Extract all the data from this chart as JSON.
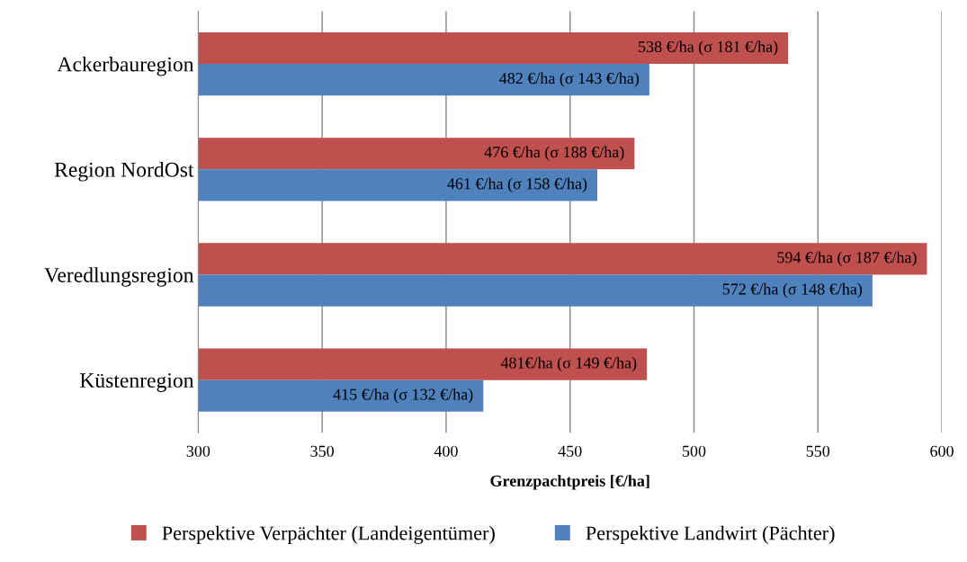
{
  "chart_data": {
    "type": "bar",
    "orientation": "horizontal",
    "xlabel": "Grenzpachtpreis [€/ha]",
    "categories": [
      "Ackerbauregion",
      "Region NordOst",
      "Veredlungsregion",
      "Küstenregion"
    ],
    "series": [
      {
        "name": "Perspektive Verpächter (Landeigentümer)",
        "color": "#c0504d",
        "values": [
          538,
          476,
          594,
          481
        ],
        "value_labels": [
          "538 €/ha (σ 181 €/ha)",
          "476 €/ha (σ 188 €/ha)",
          "594 €/ha (σ 187 €/ha)",
          "481€/ha (σ 149 €/ha)"
        ]
      },
      {
        "name": "Perspektive Landwirt (Pächter)",
        "color": "#4f81bd",
        "values": [
          482,
          461,
          572,
          415
        ],
        "value_labels": [
          "482 €/ha (σ 143 €/ha)",
          "461 €/ha (σ 158 €/ha)",
          "572 €/ha (σ 148 €/ha)",
          "415 €/ha (σ 132 €/ha)"
        ]
      }
    ],
    "xlim": [
      300,
      600
    ],
    "xticks": [
      300,
      350,
      400,
      450,
      500,
      550,
      600
    ],
    "grid": "x",
    "legend": "bottom"
  }
}
